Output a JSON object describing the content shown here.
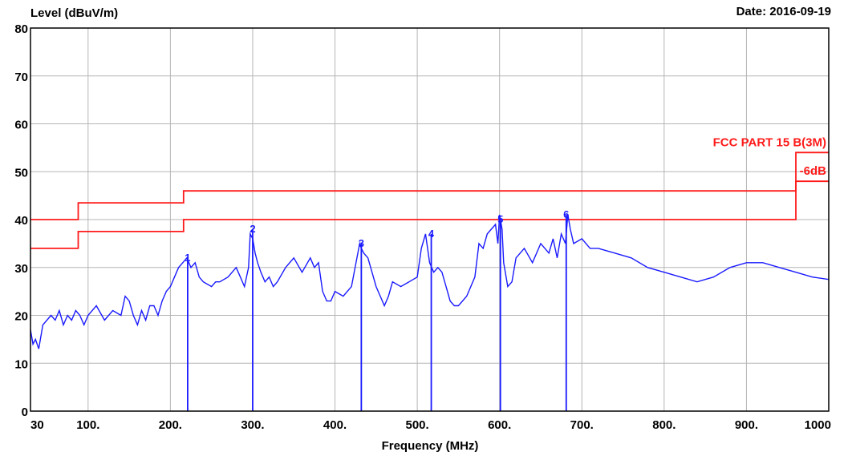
{
  "header": {
    "ylabel": "Level (dBuV/m)",
    "date": "Date: 2016-09-19"
  },
  "chart_data": {
    "type": "line",
    "xlabel": "Frequency (MHz)",
    "ylabel": "Level (dBuV/m)",
    "xlim": [
      30,
      1000
    ],
    "ylim": [
      0,
      80
    ],
    "grid": true,
    "xticks": [
      {
        "value": 30,
        "label": "30"
      },
      {
        "value": 100,
        "label": "100."
      },
      {
        "value": 200,
        "label": "200."
      },
      {
        "value": 300,
        "label": "300."
      },
      {
        "value": 400,
        "label": "400."
      },
      {
        "value": 500,
        "label": "500."
      },
      {
        "value": 600,
        "label": "600."
      },
      {
        "value": 700,
        "label": "700."
      },
      {
        "value": 800,
        "label": "800."
      },
      {
        "value": 900,
        "label": "900."
      },
      {
        "value": 1000,
        "label": "1000"
      }
    ],
    "yticks": [
      0,
      10,
      20,
      30,
      40,
      50,
      60,
      70,
      80
    ],
    "limits": [
      {
        "label": "FCC PART 15 B(3M)",
        "color": "#ff1a1a",
        "x": [
          30,
          88,
          88,
          216,
          216,
          960,
          960,
          1000
        ],
        "y": [
          40,
          40,
          43.5,
          43.5,
          46,
          46,
          54,
          54
        ]
      },
      {
        "label": "-6dB",
        "color": "#ff1a1a",
        "x": [
          30,
          88,
          88,
          216,
          216,
          960,
          960,
          1000
        ],
        "y": [
          34,
          34,
          37.5,
          37.5,
          40,
          40,
          48,
          48
        ]
      }
    ],
    "series": [
      {
        "color": "#1a1aff",
        "x": [
          30,
          33,
          36,
          40,
          45,
          50,
          55,
          60,
          65,
          70,
          75,
          80,
          85,
          90,
          95,
          100,
          110,
          120,
          130,
          140,
          145,
          150,
          155,
          160,
          165,
          170,
          175,
          180,
          185,
          190,
          195,
          200,
          205,
          210,
          215,
          220,
          225,
          230,
          235,
          240,
          250,
          255,
          260,
          270,
          280,
          285,
          290,
          295,
          297,
          300,
          303,
          306,
          310,
          315,
          320,
          325,
          330,
          340,
          350,
          360,
          370,
          375,
          380,
          385,
          390,
          395,
          400,
          410,
          420,
          430,
          432,
          435,
          440,
          445,
          450,
          455,
          460,
          465,
          470,
          480,
          490,
          500,
          505,
          510,
          515,
          520,
          525,
          530,
          535,
          540,
          545,
          550,
          560,
          570,
          575,
          580,
          585,
          590,
          595,
          598,
          600,
          603,
          605,
          610,
          615,
          620,
          630,
          640,
          650,
          660,
          665,
          670,
          675,
          680,
          683,
          686,
          690,
          700,
          710,
          720,
          740,
          760,
          780,
          800,
          820,
          840,
          860,
          880,
          900,
          920,
          940,
          960,
          980,
          1000
        ],
        "y": [
          17,
          14,
          15,
          13,
          18,
          19,
          20,
          19,
          21,
          18,
          20,
          19,
          21,
          20,
          18,
          20,
          22,
          19,
          21,
          20,
          24,
          23,
          20,
          18,
          21,
          19,
          22,
          22,
          20,
          23,
          25,
          26,
          28,
          30,
          31,
          32,
          30,
          31,
          28,
          27,
          26,
          27,
          27,
          28,
          30,
          28,
          26,
          30,
          37,
          36,
          33,
          31,
          29,
          27,
          28,
          26,
          27,
          30,
          32,
          29,
          32,
          30,
          31,
          25,
          23,
          23,
          25,
          24,
          26,
          35,
          34,
          33,
          32,
          29,
          26,
          24,
          22,
          24,
          27,
          26,
          27,
          28,
          34,
          37,
          31,
          29,
          30,
          29,
          26,
          23,
          22,
          22,
          24,
          28,
          35,
          34,
          37,
          38,
          39,
          35,
          41,
          38,
          31,
          26,
          27,
          32,
          34,
          31,
          35,
          33,
          36,
          32,
          37,
          35,
          41,
          38,
          35,
          36,
          34,
          34,
          33,
          32,
          30,
          29,
          28,
          27,
          28,
          30,
          31,
          31,
          30,
          29,
          28,
          27.5
        ]
      }
    ],
    "markers": [
      {
        "label": "1",
        "x": 221,
        "y": 32
      },
      {
        "label": "2",
        "x": 300,
        "y": 38
      },
      {
        "label": "3",
        "x": 432,
        "y": 35
      },
      {
        "label": "4",
        "x": 517,
        "y": 37
      },
      {
        "label": "5",
        "x": 601,
        "y": 40
      },
      {
        "label": "6",
        "x": 681,
        "y": 41
      }
    ]
  }
}
